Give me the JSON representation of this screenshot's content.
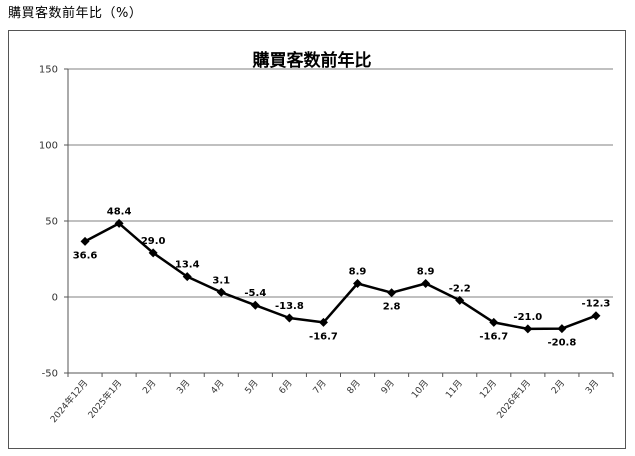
{
  "page": {
    "caption": "購買客数前年比（%）"
  },
  "chart_data": {
    "type": "line",
    "title": "購買客数前年比",
    "xlabel": "",
    "ylabel": "",
    "ylim": [
      -50,
      150
    ],
    "yticks": [
      150,
      100,
      50,
      0,
      -50
    ],
    "grid": true,
    "legend": "none",
    "categories": [
      "2024年12月",
      "2025年1月",
      "2月",
      "3月",
      "4月",
      "5月",
      "6月",
      "7月",
      "8月",
      "9月",
      "10月",
      "11月",
      "12月",
      "2026年1月",
      "2月",
      "3月"
    ],
    "values": [
      36.6,
      48.4,
      29.0,
      13.4,
      3.1,
      -5.4,
      -13.8,
      -16.7,
      8.9,
      2.8,
      8.9,
      -2.2,
      -16.7,
      -21.0,
      -20.8,
      -12.3
    ],
    "value_labels": [
      "36.6",
      "48.4",
      "29.0",
      "13.4",
      "3.1",
      "-5.4",
      "-13.8",
      "-16.7",
      "8.9",
      "2.8",
      "8.9",
      "-2.2",
      "-16.7",
      "-21.0",
      "-20.8",
      "-12.3"
    ],
    "colors": {
      "line": "#000000",
      "grid": "#808080"
    }
  }
}
